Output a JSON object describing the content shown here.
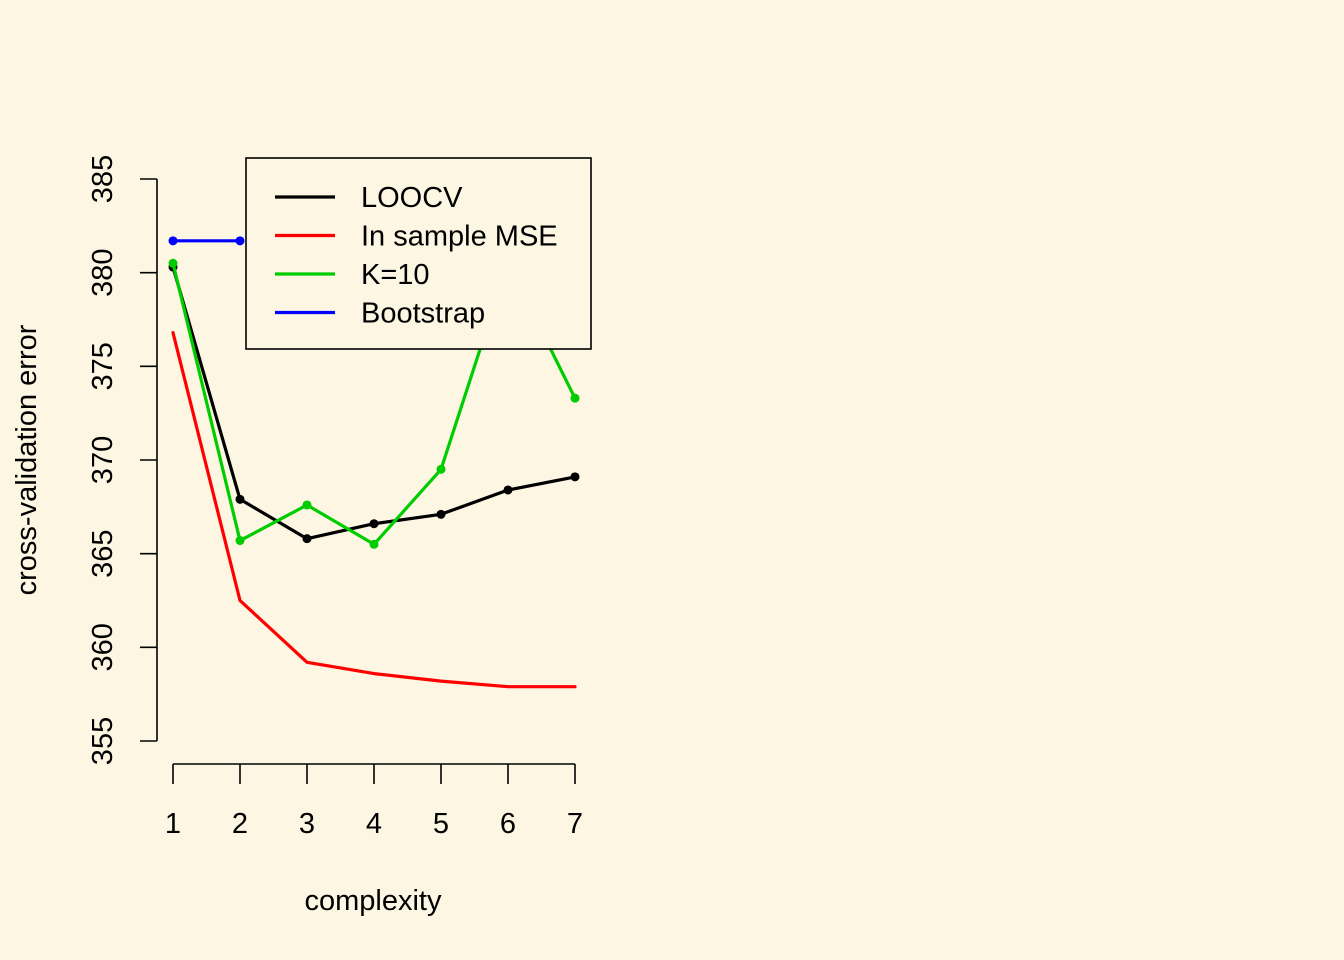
{
  "chart_data": {
    "type": "line",
    "title": "",
    "xlabel": "complexity",
    "ylabel": "cross-validation error",
    "x": [
      1,
      2,
      3,
      4,
      5,
      6,
      7
    ],
    "xlim": [
      1,
      7
    ],
    "ylim": [
      355,
      385
    ],
    "yticks": [
      355,
      360,
      365,
      370,
      375,
      380,
      385
    ],
    "grid": false,
    "legend_position": "top-right",
    "series": [
      {
        "name": "LOOCV",
        "color": "#000000",
        "markers": true,
        "x": [
          1,
          2,
          3,
          4,
          5,
          6,
          7
        ],
        "values": [
          380.3,
          367.9,
          365.8,
          366.6,
          367.1,
          368.4,
          369.1
        ]
      },
      {
        "name": "In sample MSE",
        "color": "#FF0000",
        "markers": false,
        "x": [
          1,
          2,
          3,
          4,
          5,
          6,
          7
        ],
        "values": [
          376.8,
          362.5,
          359.2,
          358.6,
          358.2,
          357.9,
          357.9
        ]
      },
      {
        "name": "K=10",
        "color": "#00CD00",
        "markers": true,
        "x": [
          1,
          2,
          3,
          4,
          5,
          6,
          7
        ],
        "values": [
          380.5,
          365.7,
          367.6,
          365.5,
          369.5,
          380.5,
          373.3
        ]
      },
      {
        "name": "Bootstrap",
        "color": "#0000FF",
        "markers": true,
        "x": [
          1,
          2
        ],
        "values": [
          381.7,
          381.7
        ]
      }
    ]
  }
}
